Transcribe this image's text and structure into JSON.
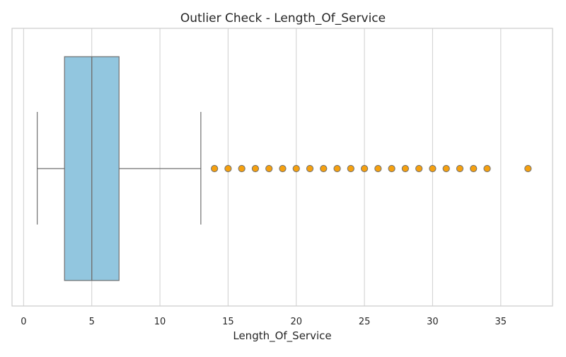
{
  "chart_data": {
    "type": "boxplot",
    "orientation": "horizontal",
    "title": "Outlier Check - Length_Of_Service",
    "xlabel": "Length_Of_Service",
    "ylabel": "",
    "xlim": [
      -0.85,
      38.8
    ],
    "xticks": [
      0,
      5,
      10,
      15,
      20,
      25,
      30,
      35
    ],
    "grid": true,
    "box": {
      "whisker_low": 1,
      "q1": 3,
      "median": 5,
      "q3": 7,
      "whisker_high": 13
    },
    "outliers": [
      14,
      15,
      16,
      17,
      18,
      19,
      20,
      21,
      22,
      23,
      24,
      25,
      26,
      27,
      28,
      29,
      30,
      31,
      32,
      33,
      34,
      37
    ],
    "colors": {
      "box_fill": "#92c6df",
      "box_edge": "#707070",
      "outlier_fill": "#f5a00f",
      "outlier_edge": "#707070",
      "grid": "#d3d3d3",
      "frame": "#cccccc",
      "text": "#262626"
    }
  }
}
